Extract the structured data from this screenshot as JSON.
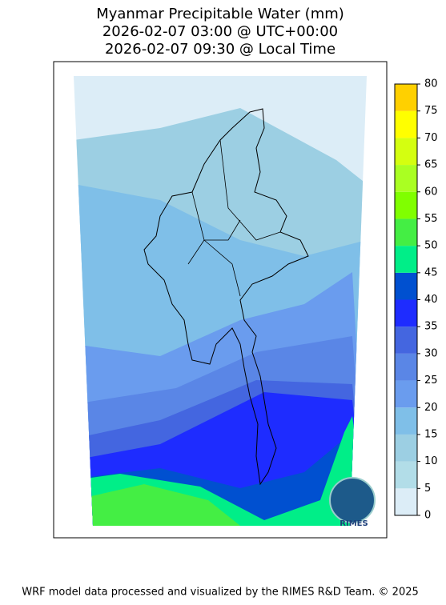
{
  "title": [
    "Myanmar Precipitable Water (mm)",
    "2026-02-07 03:00 @ UTC+00:00",
    "2026-02-07 09:30 @ Local Time"
  ],
  "colorbar": {
    "ticks": [
      0,
      5,
      10,
      15,
      20,
      25,
      30,
      35,
      40,
      45,
      50,
      55,
      60,
      65,
      70,
      75,
      80
    ],
    "colors": [
      "#dcedf7",
      "#b2dde8",
      "#9ccfe3",
      "#7fbfe8",
      "#6a9cee",
      "#5a86e6",
      "#4466e0",
      "#1e2cff",
      "#0050d0",
      "#00ee88",
      "#44ee44",
      "#80ff00",
      "#aaff22",
      "#d4ff10",
      "#ffff00",
      "#ffd000"
    ]
  },
  "logo": "RIMES",
  "footer": "WRF model data processed and visualized by the RIMES R&D Team. © 2025"
}
